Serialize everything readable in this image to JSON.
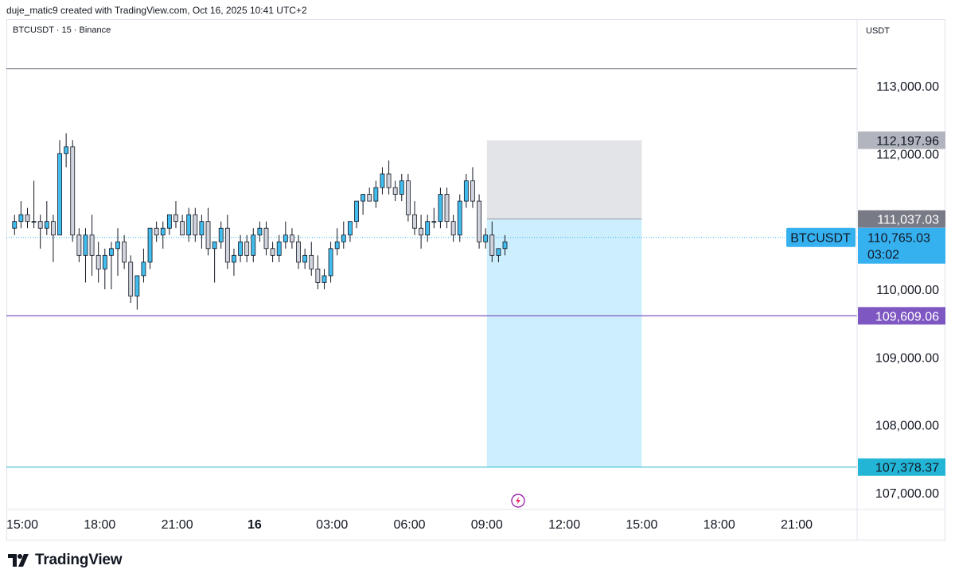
{
  "header": {
    "attribution": "duje_matic9 created with TradingView.com, Oct 16, 2025 10:41 UTC+2"
  },
  "footer": {
    "brand": "TradingView",
    "logo_icon": "tradingview-logo-icon"
  },
  "chart_data": {
    "type": "candlestick",
    "symbol_label": "BTCUSDT · 15 · Binance",
    "currency": "USDT",
    "ylim": [
      106750,
      113750
    ],
    "y_ticks": [
      "113,000.00",
      "112,000.00",
      "110,000.00",
      "109,000.00",
      "108,000.00",
      "107,000.00"
    ],
    "y_tick_values": [
      113000,
      112000,
      110000,
      109000,
      108000,
      107000
    ],
    "x_ticks": [
      "15:00",
      "18:00",
      "21:00",
      "16",
      "03:00",
      "06:00",
      "09:00",
      "12:00",
      "15:00",
      "18:00",
      "21:00"
    ],
    "x_tick_hours": [
      0,
      3,
      6,
      9,
      12,
      15,
      18,
      21,
      24,
      27,
      30
    ],
    "x_start_hour": -0.3,
    "bar_minutes": 15,
    "candles": [
      [
        110.9,
        111.1,
        110.8,
        111.0
      ],
      [
        111.0,
        111.3,
        110.9,
        111.1
      ],
      [
        111.1,
        111.2,
        110.9,
        111.0
      ],
      [
        111.0,
        111.6,
        110.9,
        111.0
      ],
      [
        111.0,
        111.1,
        110.6,
        110.9
      ],
      [
        110.9,
        111.3,
        110.8,
        111.0
      ],
      [
        111.0,
        111.1,
        110.4,
        110.8
      ],
      [
        110.8,
        112.2,
        110.8,
        112.0
      ],
      [
        112.0,
        112.3,
        111.8,
        112.1
      ],
      [
        112.1,
        112.2,
        110.7,
        110.8
      ],
      [
        110.8,
        110.9,
        110.4,
        110.5
      ],
      [
        110.5,
        110.9,
        110.1,
        110.8
      ],
      [
        110.8,
        111.1,
        110.2,
        110.5
      ],
      [
        110.5,
        110.7,
        110.1,
        110.3
      ],
      [
        110.3,
        110.6,
        110.0,
        110.5
      ],
      [
        110.5,
        110.7,
        110.0,
        110.6
      ],
      [
        110.6,
        110.9,
        110.2,
        110.7
      ],
      [
        110.7,
        110.8,
        110.3,
        110.4
      ],
      [
        110.4,
        110.5,
        109.8,
        109.9
      ],
      [
        109.9,
        110.2,
        109.7,
        110.2
      ],
      [
        110.2,
        110.6,
        110.1,
        110.4
      ],
      [
        110.4,
        110.9,
        110.3,
        110.9
      ],
      [
        110.9,
        111.0,
        110.7,
        110.8
      ],
      [
        110.8,
        111.0,
        110.6,
        110.9
      ],
      [
        110.9,
        111.1,
        110.8,
        111.1
      ],
      [
        111.1,
        111.3,
        110.9,
        111.0
      ],
      [
        111.0,
        111.1,
        110.8,
        110.8
      ],
      [
        110.8,
        111.2,
        110.7,
        111.1
      ],
      [
        111.1,
        111.2,
        110.7,
        110.8
      ],
      [
        110.8,
        111.1,
        110.6,
        111.0
      ],
      [
        111.0,
        111.2,
        110.5,
        110.6
      ],
      [
        110.6,
        110.7,
        110.1,
        110.7
      ],
      [
        110.7,
        111.0,
        110.6,
        110.9
      ],
      [
        110.9,
        111.1,
        110.3,
        110.4
      ],
      [
        110.4,
        110.6,
        110.2,
        110.5
      ],
      [
        110.5,
        110.8,
        110.4,
        110.7
      ],
      [
        110.7,
        110.8,
        110.4,
        110.5
      ],
      [
        110.5,
        110.9,
        110.4,
        110.8
      ],
      [
        110.8,
        111.0,
        110.7,
        110.9
      ],
      [
        110.9,
        111.0,
        110.5,
        110.6
      ],
      [
        110.6,
        110.7,
        110.4,
        110.5
      ],
      [
        110.5,
        110.8,
        110.4,
        110.7
      ],
      [
        110.7,
        111.0,
        110.6,
        110.8
      ],
      [
        110.8,
        110.9,
        110.6,
        110.7
      ],
      [
        110.7,
        110.8,
        110.3,
        110.4
      ],
      [
        110.4,
        110.6,
        110.3,
        110.5
      ],
      [
        110.5,
        110.7,
        110.2,
        110.3
      ],
      [
        110.3,
        110.5,
        110.0,
        110.1
      ],
      [
        110.1,
        110.3,
        110.0,
        110.2
      ],
      [
        110.2,
        110.7,
        110.1,
        110.6
      ],
      [
        110.6,
        110.9,
        110.5,
        110.7
      ],
      [
        110.7,
        111.0,
        110.6,
        110.8
      ],
      [
        110.8,
        111.0,
        110.7,
        111.0
      ],
      [
        111.0,
        111.3,
        110.9,
        111.3
      ],
      [
        111.3,
        111.4,
        111.1,
        111.4
      ],
      [
        111.4,
        111.5,
        111.3,
        111.3
      ],
      [
        111.3,
        111.6,
        111.2,
        111.5
      ],
      [
        111.5,
        111.8,
        111.4,
        111.7
      ],
      [
        111.7,
        111.9,
        111.4,
        111.5
      ],
      [
        111.5,
        111.6,
        111.3,
        111.4
      ],
      [
        111.4,
        111.7,
        111.3,
        111.6
      ],
      [
        111.6,
        111.7,
        111.0,
        111.1
      ],
      [
        111.1,
        111.3,
        110.8,
        110.9
      ],
      [
        110.9,
        111.1,
        110.6,
        110.8
      ],
      [
        110.8,
        111.1,
        110.7,
        111.0
      ],
      [
        111.0,
        111.2,
        110.9,
        111.0
      ],
      [
        111.0,
        111.5,
        110.9,
        111.4
      ],
      [
        111.4,
        111.5,
        110.9,
        111.0
      ],
      [
        111.0,
        111.1,
        110.7,
        110.8
      ],
      [
        110.8,
        111.4,
        110.7,
        111.3
      ],
      [
        111.3,
        111.7,
        111.2,
        111.6
      ],
      [
        111.6,
        111.8,
        111.2,
        111.3
      ],
      [
        111.3,
        111.4,
        110.6,
        110.7
      ],
      [
        110.7,
        110.9,
        110.6,
        110.8
      ],
      [
        110.8,
        111.0,
        110.4,
        110.5
      ],
      [
        110.5,
        110.6,
        110.4,
        110.6
      ],
      [
        110.6,
        110.8,
        110.5,
        110.7
      ]
    ],
    "annotations": {
      "resistance_line": 113250,
      "support_line": 109609.06,
      "bottom_line": 107378.37,
      "box_start_hour": 18,
      "box_end_hour": 24,
      "stop_top": 112197.96,
      "entry": 111037.03,
      "target": 107378.37
    },
    "last_price": 110765.03,
    "price_labels": {
      "stop": "112,197.96",
      "entry": "111,037.03",
      "current": "110,765.03",
      "countdown": "03:02",
      "support": "109,609.06",
      "target": "107,378.37",
      "symbol_tag": "BTCUSDT"
    },
    "colors": {
      "up": "#42bdee",
      "down": "#d1d4dc",
      "wick": "#131722",
      "resistance": "#5d606b",
      "support": "#7e57c2",
      "target": "#22b5d6",
      "stop_zone": "#e3e4e8",
      "profit_zone": "#cdeefc",
      "current": "#36b1f0",
      "entry_label": "#787b86",
      "stop_label": "#b2b5be"
    }
  }
}
